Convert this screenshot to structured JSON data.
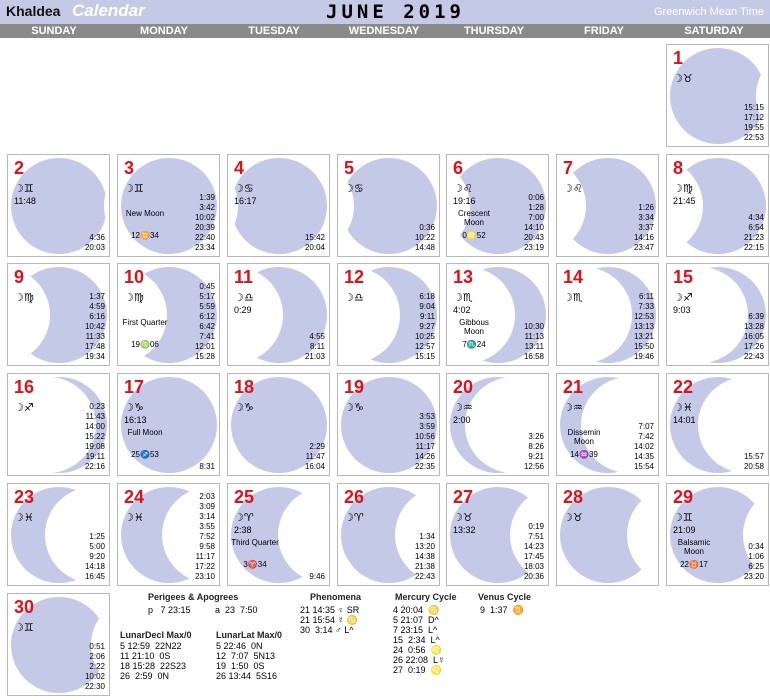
{
  "header": {
    "brand": "Khaldea",
    "brand_script": "Calendar",
    "month_title": "JUNE 2019",
    "timezone": "Greenwich Mean Time"
  },
  "weekdays": [
    "SUNDAY",
    "MONDAY",
    "TUESDAY",
    "WEDNESDAY",
    "THURSDAY",
    "FRIDAY",
    "SATURDAY"
  ],
  "days": [
    {
      "day": "1",
      "sign": "☽♉",
      "ingress": "",
      "phase_label": "",
      "phase_time": "",
      "aspects": [
        "15:15",
        "17:12",
        "19:55",
        "22:53"
      ]
    },
    {
      "day": "2",
      "sign": "☽♊",
      "ingress": "11:48",
      "phase_label": "",
      "phase_time": "",
      "aspects": [
        "4:36",
        "20:03"
      ]
    },
    {
      "day": "3",
      "sign": "☽♊",
      "ingress": "",
      "phase_label": "New Moon",
      "phase_time": "12♊34",
      "aspects": [
        "1:39",
        "3:42",
        "10:02",
        "20:39",
        "22:40",
        "23:34"
      ]
    },
    {
      "day": "4",
      "sign": "☽♋",
      "ingress": "16:17",
      "phase_label": "",
      "phase_time": "",
      "aspects": [
        "15:42",
        "20:04"
      ]
    },
    {
      "day": "5",
      "sign": "☽♋",
      "ingress": "",
      "phase_label": "",
      "phase_time": "",
      "aspects": [
        "0:36",
        "10:22",
        "14:48"
      ]
    },
    {
      "day": "6",
      "sign": "☽♌",
      "ingress": "19:16",
      "phase_label": "Crescent Moon",
      "phase_time": "0♌52",
      "aspects": [
        "0:06",
        "1:28",
        "7:00",
        "14:10",
        "20:43",
        "23:19"
      ]
    },
    {
      "day": "7",
      "sign": "☽♌",
      "ingress": "",
      "phase_label": "",
      "phase_time": "",
      "aspects": [
        "1:26",
        "3:34",
        "3:37",
        "14:16",
        "23:47"
      ]
    },
    {
      "day": "8",
      "sign": "☽♍",
      "ingress": "21:45",
      "phase_label": "",
      "phase_time": "",
      "aspects": [
        "4:34",
        "6:54",
        "21:23",
        "22:15"
      ]
    },
    {
      "day": "9",
      "sign": "☽♍",
      "ingress": "",
      "phase_label": "",
      "phase_time": "",
      "aspects": [
        "1:37",
        "4:59",
        "6:16",
        "10:42",
        "11:33",
        "17:48",
        "19:34"
      ]
    },
    {
      "day": "10",
      "sign": "☽♍",
      "ingress": "",
      "phase_label": "First Quarter",
      "phase_time": "19♍06",
      "aspects": [
        "0:45",
        "5:17",
        "5:59",
        "6:12",
        "6:42",
        "7:41",
        "12:01",
        "15:28"
      ]
    },
    {
      "day": "11",
      "sign": "☽♎",
      "ingress": "0:29",
      "phase_label": "",
      "phase_time": "",
      "aspects": [
        "4:55",
        "8:11",
        "21:03"
      ]
    },
    {
      "day": "12",
      "sign": "☽♎",
      "ingress": "",
      "phase_label": "",
      "phase_time": "",
      "aspects": [
        "6:18",
        "9:04",
        "9:11",
        "9:27",
        "10:25",
        "12:57",
        "15:15"
      ]
    },
    {
      "day": "13",
      "sign": "☽♏",
      "ingress": "4:02",
      "phase_label": "Gibbous Moon",
      "phase_time": "7♏24",
      "aspects": [
        "10:30",
        "11:13",
        "13:11",
        "16:58"
      ]
    },
    {
      "day": "14",
      "sign": "☽♏",
      "ingress": "",
      "phase_label": "",
      "phase_time": "",
      "aspects": [
        "6:11",
        "7:33",
        "12:53",
        "13:13",
        "13:21",
        "15:50",
        "19:46"
      ]
    },
    {
      "day": "15",
      "sign": "☽♐",
      "ingress": "9:03",
      "phase_label": "",
      "phase_time": "",
      "aspects": [
        "6:39",
        "13:28",
        "16:05",
        "17:26",
        "22:43"
      ]
    },
    {
      "day": "16",
      "sign": "☽♐",
      "ingress": "",
      "phase_label": "",
      "phase_time": "",
      "aspects": [
        "0:23",
        "11:43",
        "14:00",
        "15:22",
        "19:08",
        "19:11",
        "22:16"
      ]
    },
    {
      "day": "17",
      "sign": "☽♑",
      "ingress": "16:13",
      "phase_label": "Full Moon",
      "phase_time": "25♐53",
      "aspects": [
        "8:31"
      ]
    },
    {
      "day": "18",
      "sign": "☽♑",
      "ingress": "",
      "phase_label": "",
      "phase_time": "",
      "aspects": [
        "2:29",
        "11:47",
        "16:04"
      ]
    },
    {
      "day": "19",
      "sign": "☽♑",
      "ingress": "",
      "phase_label": "",
      "phase_time": "",
      "aspects": [
        "3:53",
        "3:59",
        "10:56",
        "11:17",
        "14:26",
        "22:35"
      ]
    },
    {
      "day": "20",
      "sign": "☽♒",
      "ingress": "2:00",
      "phase_label": "",
      "phase_time": "",
      "aspects": [
        "3:26",
        "8:26",
        "9:21",
        "12:56"
      ]
    },
    {
      "day": "21",
      "sign": "☽♒",
      "ingress": "",
      "phase_label": "Dissemin Moon",
      "phase_time": "14♒39",
      "aspects": [
        "7:07",
        "7:42",
        "14:02",
        "14:35",
        "15:54"
      ]
    },
    {
      "day": "22",
      "sign": "☽♓",
      "ingress": "14:01",
      "phase_label": "",
      "phase_time": "",
      "aspects": [
        "15:57",
        "20:58"
      ]
    },
    {
      "day": "23",
      "sign": "☽♓",
      "ingress": "",
      "phase_label": "",
      "phase_time": "",
      "aspects": [
        "1:25",
        "5:00",
        "9:20",
        "14:18",
        "16:45"
      ]
    },
    {
      "day": "24",
      "sign": "☽♓",
      "ingress": "",
      "phase_label": "",
      "phase_time": "",
      "aspects": [
        "2:03",
        "3:09",
        "3:14",
        "3:55",
        "7:52",
        "9:58",
        "11:17",
        "17:22",
        "23:10"
      ]
    },
    {
      "day": "25",
      "sign": "☽♈",
      "ingress": "2:38",
      "phase_label": "Third Quarter",
      "phase_time": "3♈34",
      "aspects": [
        "9:46"
      ]
    },
    {
      "day": "26",
      "sign": "☽♈",
      "ingress": "",
      "phase_label": "",
      "phase_time": "",
      "aspects": [
        "1:34",
        "13:20",
        "14:38",
        "21:38",
        "22:43"
      ]
    },
    {
      "day": "27",
      "sign": "☽♉",
      "ingress": "13:32",
      "phase_label": "",
      "phase_time": "",
      "aspects": [
        "0:19",
        "7:51",
        "14:23",
        "17:45",
        "18:03",
        "20:36"
      ]
    },
    {
      "day": "28",
      "sign": "☽♉",
      "ingress": "",
      "phase_label": "",
      "phase_time": "",
      "aspects": []
    },
    {
      "day": "29",
      "sign": "☽♊",
      "ingress": "21:09",
      "phase_label": "Balsamic Moon",
      "phase_time": "22♉17",
      "aspects": [
        "0:34",
        "1:06",
        "6:25",
        "23:20"
      ]
    },
    {
      "day": "30",
      "sign": "☽♊",
      "ingress": "",
      "phase_label": "",
      "phase_time": "",
      "aspects": [
        "0:51",
        "2:06",
        "2:22",
        "10:02",
        "22:30"
      ]
    }
  ],
  "footer": {
    "perigees_title": "Perigees & Apogrees",
    "perigee_line": "p   7 23:15",
    "apogee_line": "a  23  7:50",
    "lunardecl_title": "LunarDecl Max/0",
    "lunardecl_lines": [
      "5 12:59  22N22",
      "11 21:10  0S",
      "18 15:28  22S23",
      "26  2:59  0N"
    ],
    "lunarlat_title": "LunarLat Max/0",
    "lunarlat_lines": [
      "5 22:46  0N",
      "12  7:07  5N13",
      "19  1:50  0S",
      "26 13:44  5S16"
    ],
    "phenomena_title": "Phenomena",
    "phenomena_lines": [
      "21 14:35 ♀ SR",
      "21 15:54 ☿ ♋",
      "30  3:14 ♂ L^"
    ],
    "mercury_title": "Mercury Cycle",
    "mercury_lines": [
      "4 20:04  ♋",
      "5 21:07  D^",
      "7 23:15  L^",
      "15  2:34  L^",
      "24  0:56  ♌",
      "26 22:08  L☿",
      "27  0:19  ♌"
    ],
    "venus_title": "Venus Cycle",
    "venus_lines": [
      "9  1:37  ♊"
    ]
  }
}
